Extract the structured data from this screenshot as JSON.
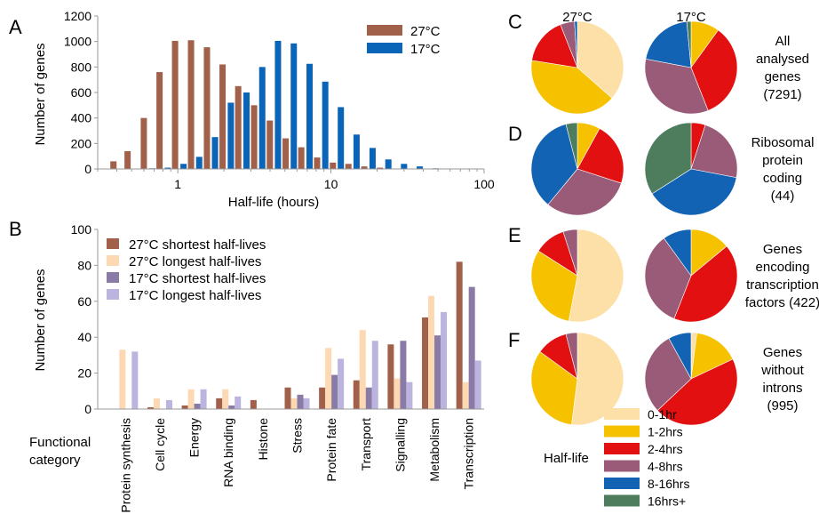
{
  "colors": {
    "warm_dark": "#a0604a",
    "warm_light": "#fcd9b2",
    "cold_dark": "#8a7aa6",
    "cold_light": "#bbb4de",
    "blue": "#0a64b8",
    "pie": [
      "#fde0a7",
      "#f6c200",
      "#e21010",
      "#9a5b78",
      "#1363b4",
      "#4e7d5e"
    ]
  },
  "chart_data": [
    {
      "panel": "A",
      "type": "bar",
      "xlabel": "Half-life (hours)",
      "ylabel": "Number of genes",
      "x_scale": "log",
      "xlim": [
        0.3,
        100
      ],
      "ylim": [
        0,
        1200
      ],
      "x_ticks": [
        1,
        10,
        100
      ],
      "y_ticks": [
        0,
        200,
        400,
        600,
        800,
        1000,
        1200
      ],
      "legend_position": "top-right",
      "series": [
        {
          "name": "27°C",
          "x": [
            0.38,
            0.47,
            0.6,
            0.76,
            0.96,
            1.22,
            1.55,
            1.96,
            2.48,
            3.15,
            3.99,
            5.06,
            6.4,
            8.12,
            10.3,
            13.0,
            16.5,
            20.9
          ],
          "values": [
            60,
            140,
            400,
            760,
            1005,
            1010,
            955,
            820,
            650,
            500,
            380,
            240,
            170,
            90,
            50,
            40,
            20,
            10
          ]
        },
        {
          "name": "17°C",
          "x": [
            0.53,
            0.68,
            0.86,
            1.09,
            1.38,
            1.75,
            2.22,
            2.81,
            3.56,
            4.51,
            5.72,
            7.25,
            9.18,
            11.6,
            14.7,
            18.7,
            23.7,
            30.0,
            38.0,
            48.2
          ],
          "values": [
            0,
            5,
            10,
            40,
            95,
            250,
            520,
            600,
            800,
            1005,
            985,
            825,
            685,
            485,
            270,
            165,
            75,
            40,
            20,
            5
          ]
        }
      ]
    },
    {
      "panel": "B",
      "type": "bar",
      "xlabel": "Functional category",
      "ylabel": "Number of genes",
      "ylim": [
        0,
        100
      ],
      "y_ticks": [
        0,
        20,
        40,
        60,
        80,
        100
      ],
      "legend_position": "top-left",
      "categories": [
        "Protein synthesis",
        "Cell cycle",
        "Energy",
        "RNA binding",
        "Histone",
        "Stress",
        "Protein fate",
        "Transport",
        "Signalling",
        "Metabolism",
        "Transcription"
      ],
      "series": [
        {
          "name": "27°C shortest half-lives",
          "values": [
            0,
            1,
            2,
            6,
            5,
            12,
            12,
            16,
            36,
            51,
            82
          ]
        },
        {
          "name": "27°C longest half-lives",
          "values": [
            33,
            6,
            11,
            11,
            0,
            6,
            34,
            44,
            17,
            63,
            15
          ]
        },
        {
          "name": "17°C shortest half-lives",
          "values": [
            0,
            0,
            3,
            2,
            0,
            8,
            19,
            12,
            38,
            41,
            68
          ]
        },
        {
          "name": "17°C longest half-lives",
          "values": [
            32,
            5,
            11,
            7,
            0,
            6,
            28,
            38,
            15,
            54,
            27
          ]
        }
      ]
    },
    {
      "type": "pie",
      "column_headers": [
        "27°C",
        "17°C"
      ],
      "legend_title": "Half-life",
      "legend_entries": [
        "0-1hr",
        "1-2hrs",
        "2-4hrs",
        "4-8hrs",
        "8-16hrs",
        "16hrs+"
      ],
      "rows": [
        {
          "panel": "C",
          "label_lines": [
            "All",
            "analysed",
            "genes",
            "(7291)"
          ],
          "pie_27": [
            36.5,
            41,
            16.5,
            5,
            1,
            0
          ],
          "pie_17": [
            0,
            10,
            34,
            34,
            20.5,
            1.5
          ]
        },
        {
          "panel": "D",
          "label_lines": [
            "Ribosomal",
            "protein",
            "coding",
            "(44)"
          ],
          "pie_27": [
            0,
            8,
            22,
            31,
            35,
            4
          ],
          "pie_17": [
            0,
            0,
            5,
            23,
            38,
            34
          ]
        },
        {
          "panel": "E",
          "label_lines": [
            "Genes",
            "encoding",
            "transcription",
            "factors (422)"
          ],
          "pie_27": [
            53,
            31,
            11,
            5,
            0,
            0
          ],
          "pie_17": [
            0,
            14,
            42,
            34,
            10,
            0
          ]
        },
        {
          "panel": "F",
          "label_lines": [
            "Genes",
            "without",
            "introns",
            "(995)"
          ],
          "pie_27": [
            52,
            33,
            11,
            4,
            0,
            0
          ],
          "pie_17": [
            2,
            16,
            45,
            29,
            8,
            0
          ]
        }
      ]
    }
  ]
}
